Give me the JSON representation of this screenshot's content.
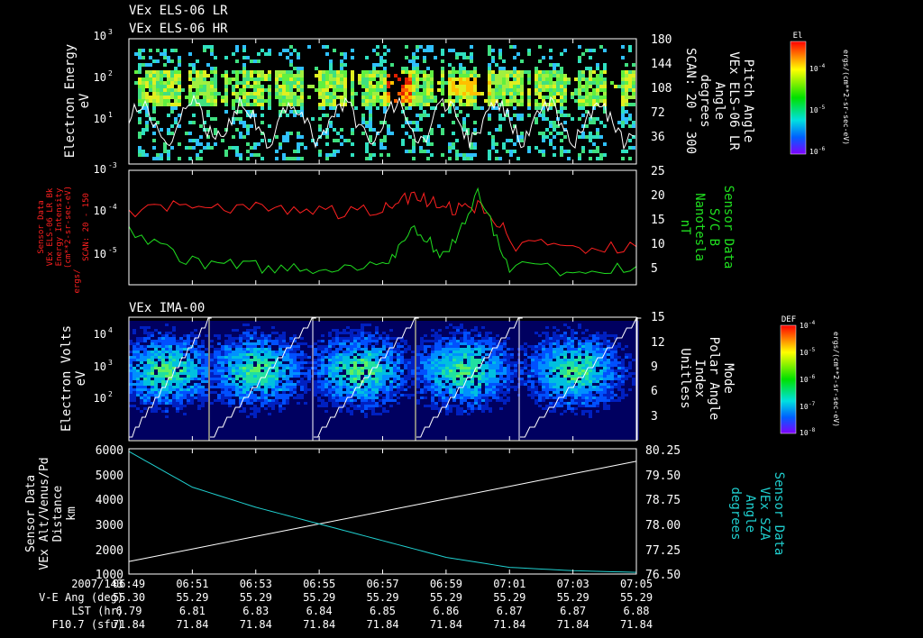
{
  "colors": {
    "background": "#000000",
    "white": "#ffffff",
    "red": "#ff2020",
    "green": "#20e020",
    "cyan": "#20d0d0"
  },
  "titles": {
    "p1_line1": "VEx ELS-06 LR",
    "p1_line2": "VEx ELS-06 HR",
    "p3": "VEx IMA-00"
  },
  "panel1": {
    "ylabel": [
      "Electron Energy",
      "eV"
    ],
    "y_ticks": [
      "10",
      "10",
      "10",
      "10"
    ],
    "y_exps": [
      "3",
      "2",
      "1",
      ""
    ],
    "right_ticks": [
      "180",
      "144",
      "108",
      "72",
      "36"
    ],
    "right_label": [
      "Pitch Angle",
      "VEx ELS-06 LR",
      "Angle",
      "degrees",
      "SCAN: 20 - 300"
    ],
    "colorbar": {
      "title": "El",
      "ticks": [
        "10",
        "10",
        "10"
      ],
      "exps": [
        "-4",
        "-5",
        "-6"
      ],
      "label": "ergs/(cm**2-sr-sec-eV)"
    }
  },
  "panel2": {
    "left_label": [
      "Sensor Data",
      "VEx ELS-06 LR Bk",
      "Energy Intensity",
      "(cm**2-sr-sec-eV)",
      "ergs/",
      "SCAN: 20 - 150"
    ],
    "y_ticks": [
      "10",
      "10",
      "10"
    ],
    "y_exps": [
      "-3",
      "-4",
      "-5"
    ],
    "right_ticks": [
      "25",
      "20",
      "15",
      "10",
      "5"
    ],
    "right_label": [
      "Sensor Data",
      "S/C B",
      "Nanotesla",
      "nT"
    ]
  },
  "panel3": {
    "ylabel": [
      "Electron Volts",
      "eV"
    ],
    "y_ticks": [
      "10",
      "10",
      "10"
    ],
    "y_exps": [
      "4",
      "3",
      "2"
    ],
    "right_ticks": [
      "15",
      "12",
      "9",
      "6",
      "3"
    ],
    "right_label": [
      "Mode",
      "Polar Angle",
      "Index",
      "Unitless"
    ],
    "colorbar": {
      "title": "DEF",
      "ticks": [
        "10",
        "10",
        "10",
        "10",
        "10"
      ],
      "exps": [
        "-4",
        "-5",
        "-6",
        "-7",
        "-8"
      ],
      "label": "ergs/(cm**2-sr-sec-eV)"
    }
  },
  "panel4": {
    "left_ticks": [
      "6000",
      "5000",
      "4000",
      "3000",
      "2000",
      "1000"
    ],
    "left_label": [
      "Sensor Data",
      "VEx Alt/Venus/Pd",
      "Distance",
      "km"
    ],
    "right_ticks": [
      "80.25",
      "79.50",
      "78.75",
      "78.00",
      "77.25",
      "76.50"
    ],
    "right_label": [
      "Sensor Data",
      "VEx SZA",
      "Angle",
      "degrees"
    ]
  },
  "x_axis": {
    "ticks": [
      "06:49",
      "06:51",
      "06:53",
      "06:55",
      "06:57",
      "06:59",
      "07:01",
      "07:03",
      "07:05"
    ],
    "row_labels": [
      "2007/143",
      "V-E Ang (deg)",
      "LST (hr)",
      "F10.7 (sfu)"
    ],
    "ve_ang": [
      "55.30",
      "55.29",
      "55.29",
      "55.29",
      "55.29",
      "55.29",
      "55.29",
      "55.29",
      "55.29"
    ],
    "lst": [
      "6.79",
      "6.81",
      "6.83",
      "6.84",
      "6.85",
      "6.86",
      "6.87",
      "6.87",
      "6.88"
    ],
    "f107": [
      "71.84",
      "71.84",
      "71.84",
      "71.84",
      "71.84",
      "71.84",
      "71.84",
      "71.84",
      "71.84"
    ]
  },
  "chart_data": [
    {
      "type": "heatmap",
      "title": "VEx ELS-06 LR / VEx ELS-06 HR",
      "ylabel": "Electron Energy eV",
      "y_scale": "log",
      "ylim": [
        1,
        1000
      ],
      "y2label": "Pitch Angle degrees",
      "y2lim": [
        0,
        180
      ],
      "x_range": [
        "06:49",
        "07:05"
      ],
      "colorbar": "El ergs/(cm**2-sr-sec-eV)",
      "color_range": [
        1e-06,
        0.0001
      ]
    },
    {
      "type": "line",
      "ylabel": "Energy Intensity",
      "y_scale": "log",
      "ylim": [
        1e-06,
        0.001
      ],
      "y2label": "S/C B nT",
      "y2lim": [
        0,
        25
      ],
      "series": [
        {
          "name": "Sensor Data VEx ELS-06 LR Bk",
          "color": "red",
          "x": [
            "06:49",
            "06:51",
            "06:53",
            "06:55",
            "06:57",
            "06:58",
            "06:59",
            "07:00",
            "07:01",
            "07:03",
            "07:05"
          ],
          "values": [
            7e-05,
            0.00012,
            0.0001,
            8e-05,
            9e-05,
            0.0002,
            0.0001,
            0.00011,
            1.2e-05,
            9e-06,
            1e-05
          ]
        },
        {
          "name": "S/C B",
          "color": "green",
          "x": [
            "06:49",
            "06:51",
            "06:53",
            "06:55",
            "06:57",
            "06:58",
            "06:59",
            "07:00",
            "07:01",
            "07:03",
            "07:05"
          ],
          "values": [
            12,
            5,
            4,
            3,
            4,
            12,
            6,
            20,
            4,
            3,
            4
          ]
        }
      ]
    },
    {
      "type": "heatmap",
      "title": "VEx IMA-00",
      "ylabel": "Electron Volts eV",
      "y_scale": "log",
      "ylim": [
        10,
        30000
      ],
      "y2label": "Polar Angle Index",
      "y2lim": [
        0,
        15
      ],
      "x_range": [
        "06:49",
        "07:05"
      ],
      "colorbar": "DEF ergs/(cm**2-sr-sec-eV)",
      "color_range": [
        1e-08,
        0.0001
      ]
    },
    {
      "type": "line",
      "series": [
        {
          "name": "VEx Alt/Venus/Pd Distance km",
          "color": "white",
          "x": [
            "06:49",
            "06:51",
            "06:53",
            "06:55",
            "06:57",
            "06:59",
            "07:01",
            "07:03",
            "07:05"
          ],
          "values": [
            1500,
            2000,
            2500,
            3000,
            3500,
            4000,
            4500,
            5000,
            5500
          ]
        },
        {
          "name": "VEx SZA Angle degrees",
          "color": "cyan",
          "x": [
            "06:49",
            "06:51",
            "06:53",
            "06:55",
            "06:57",
            "06:59",
            "07:01",
            "07:03",
            "07:05"
          ],
          "values": [
            80.17,
            79.1,
            78.5,
            78.0,
            77.5,
            77.0,
            76.7,
            76.6,
            76.55
          ]
        }
      ],
      "ylim": [
        1000,
        6000
      ],
      "y2lim": [
        76.5,
        80.25
      ]
    }
  ]
}
